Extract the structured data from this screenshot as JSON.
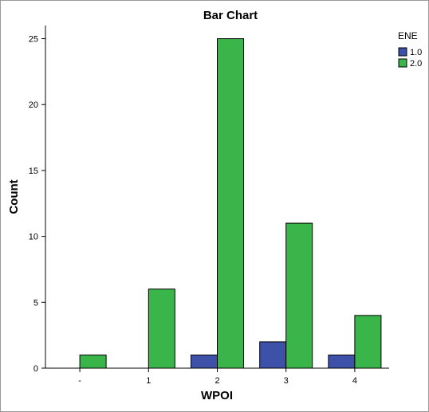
{
  "chart_data": {
    "type": "bar",
    "title": "Bar Chart",
    "xlabel": "WPOI",
    "ylabel": "Count",
    "categories": [
      "-",
      "1",
      "2",
      "3",
      "4"
    ],
    "series": [
      {
        "name": "1.0",
        "color": "#3d51a8",
        "values": [
          0,
          0,
          1,
          2,
          1
        ]
      },
      {
        "name": "2.0",
        "color": "#3ab54a",
        "values": [
          1,
          6,
          25,
          11,
          4
        ]
      }
    ],
    "ylim": [
      0,
      26
    ],
    "yticks": [
      0,
      5,
      10,
      15,
      20,
      25
    ],
    "legend": {
      "title": "ENE",
      "position": "right-top"
    },
    "grid": false
  }
}
